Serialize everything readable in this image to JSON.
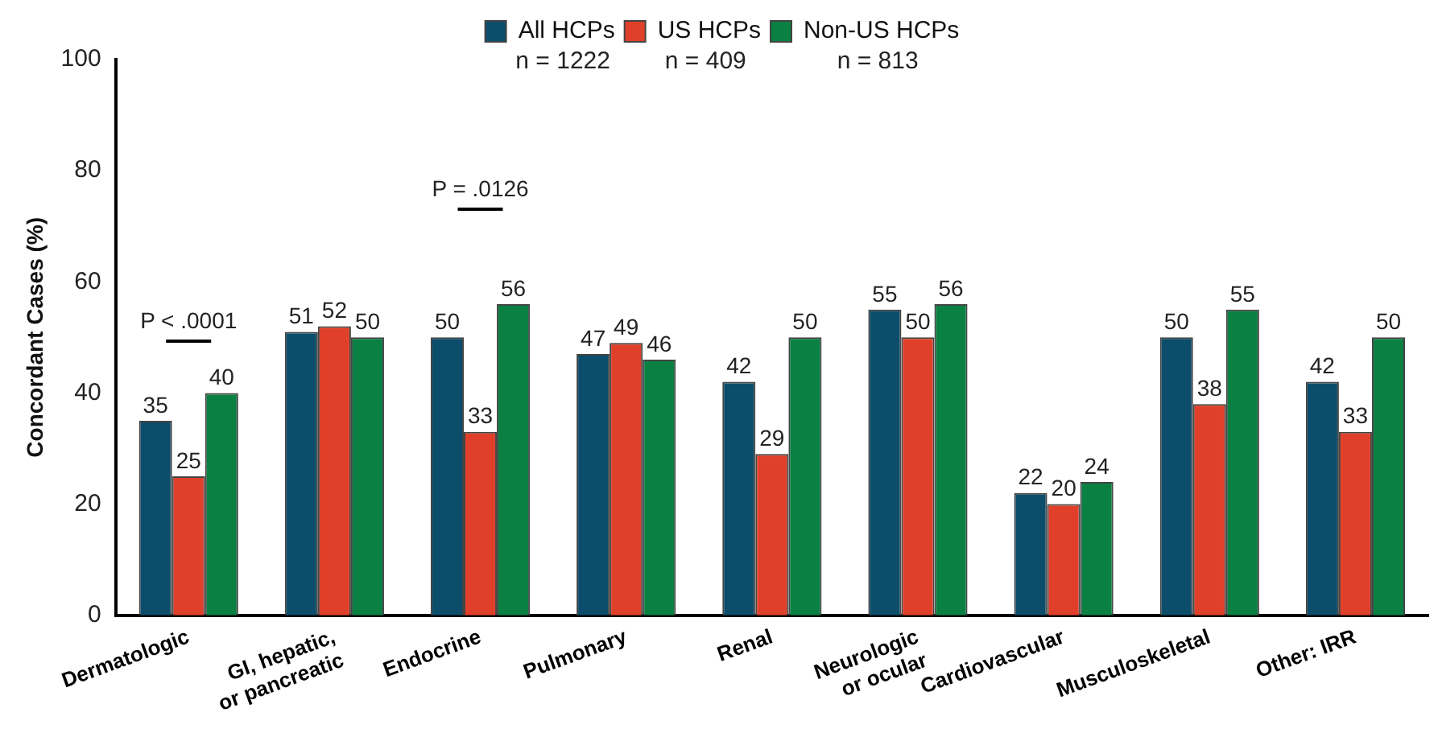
{
  "chart_data": {
    "type": "bar",
    "ylabel": "Concordant Cases (%)",
    "categories": [
      "Dermatologic",
      "GI, hepatic,\nor pancreatic",
      "Endocrine",
      "Pulmonary",
      "Renal",
      "Neurologic\nor ocular",
      "Cardiovascular",
      "Musculoskeletal",
      "Other: IRR"
    ],
    "series": [
      {
        "name": "All HCPs",
        "color": "#0b4d6b",
        "values": [
          35,
          51,
          50,
          47,
          42,
          55,
          22,
          50,
          42
        ]
      },
      {
        "name": "US HCPs",
        "color": "#e0402a",
        "values": [
          25,
          52,
          33,
          49,
          29,
          50,
          20,
          38,
          33
        ]
      },
      {
        "name": "Non-US HCPs",
        "color": "#0a8043",
        "values": [
          40,
          50,
          56,
          46,
          50,
          56,
          24,
          55,
          50
        ]
      }
    ],
    "ylim": [
      0,
      100
    ],
    "yticks": [
      0,
      20,
      40,
      60,
      80,
      100
    ],
    "grid": false,
    "legend": "top",
    "data_labels": true,
    "annotations": [
      "n = 1222",
      "n = 409",
      "n = 813",
      "P < .0001",
      "P = .0126"
    ]
  }
}
